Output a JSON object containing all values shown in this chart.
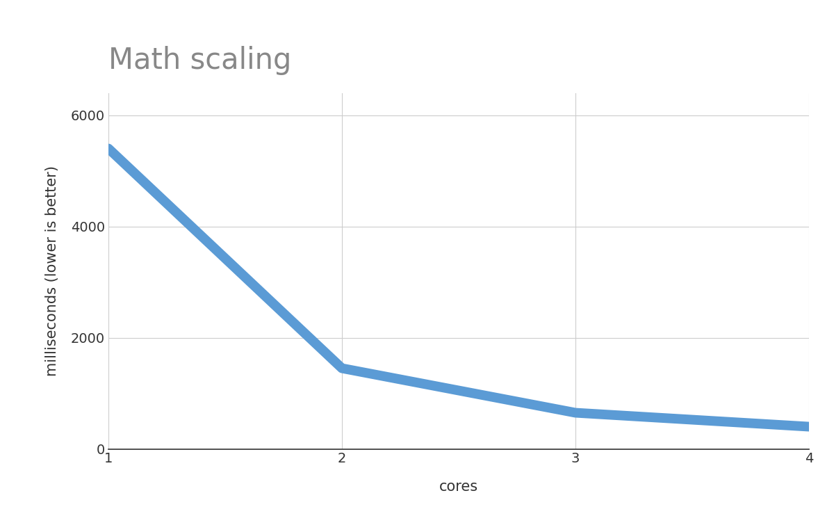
{
  "title": "Math scaling",
  "xlabel": "cores",
  "ylabel": "milliseconds (lower is better)",
  "x": [
    1,
    2,
    3,
    4
  ],
  "y": [
    5400,
    1450,
    650,
    400
  ],
  "line_color": "#5b9bd5",
  "line_width": 10,
  "xlim": [
    1,
    4
  ],
  "ylim": [
    0,
    6400
  ],
  "yticks": [
    0,
    2000,
    4000,
    6000
  ],
  "xticks": [
    1,
    2,
    3,
    4
  ],
  "title_fontsize": 30,
  "title_color": "#888888",
  "label_fontsize": 15,
  "label_color": "#333333",
  "tick_fontsize": 14,
  "tick_color": "#333333",
  "background_color": "#ffffff",
  "plot_background_color": "#ffffff",
  "grid_color": "#cccccc"
}
